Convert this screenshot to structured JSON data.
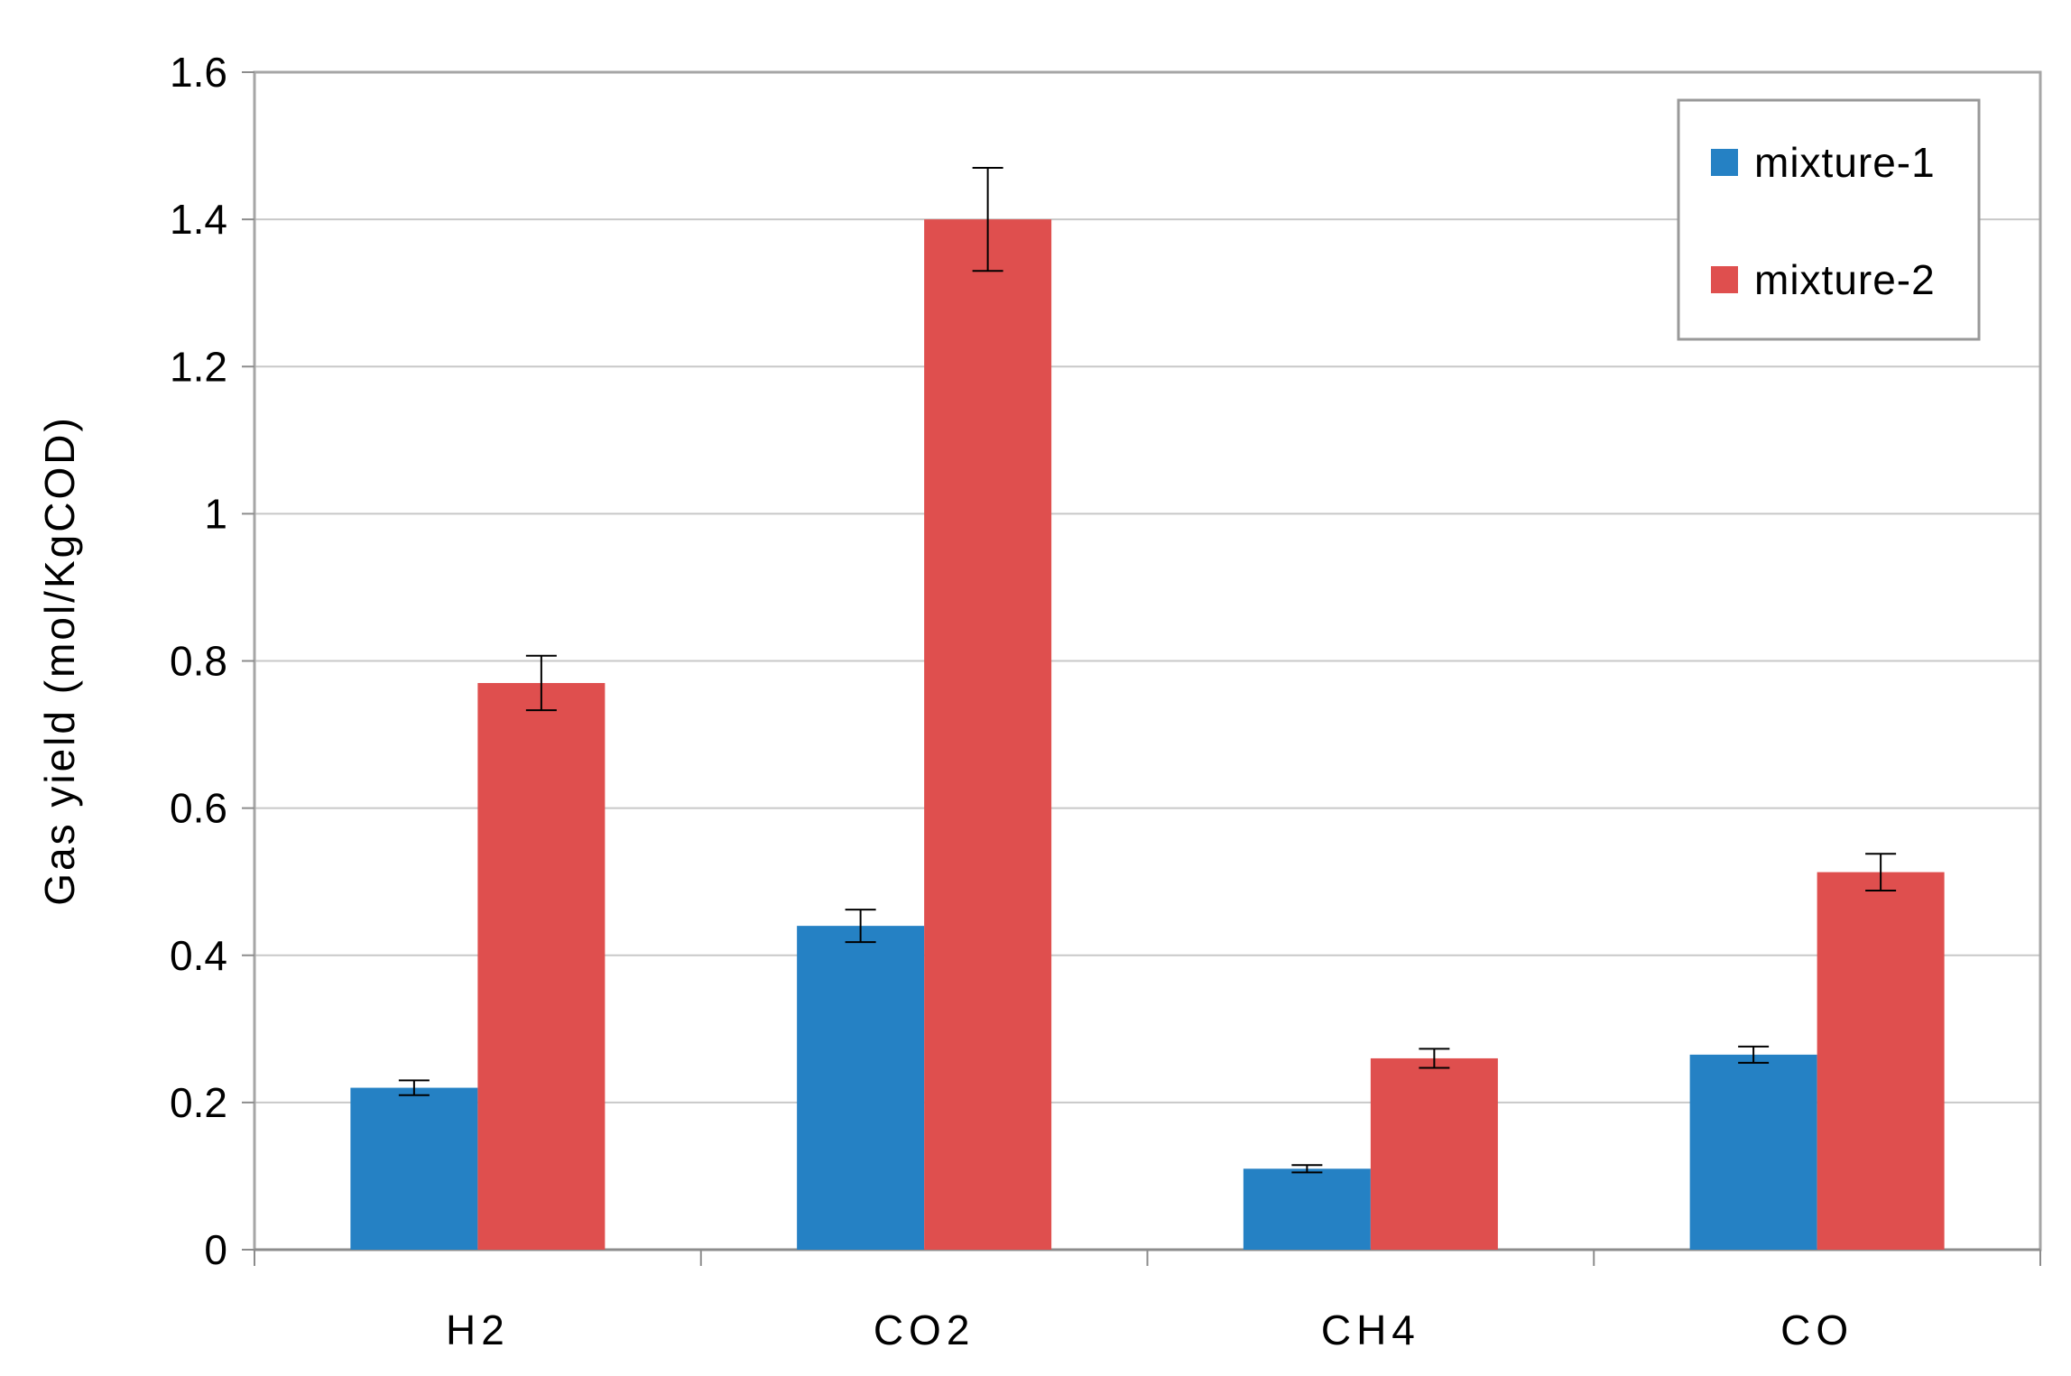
{
  "chart_data": {
    "type": "bar",
    "title": "",
    "xlabel": "",
    "ylabel": "Gas yield (mol/KgCOD)",
    "categories": [
      "H2",
      "CO2",
      "CH4",
      "CO"
    ],
    "series": [
      {
        "name": "mixture-1",
        "color": "#2581c4",
        "values": [
          0.22,
          0.44,
          0.11,
          0.265
        ],
        "errors": [
          0.01,
          0.022,
          0.005,
          0.011
        ]
      },
      {
        "name": "mixture-2",
        "color": "#df4f4e",
        "values": [
          0.77,
          1.4,
          0.26,
          0.513
        ],
        "errors": [
          0.037,
          0.07,
          0.013,
          0.025
        ]
      }
    ],
    "ylim": [
      0,
      1.6
    ],
    "yticks": [
      0,
      0.2,
      0.4,
      0.6,
      0.8,
      1,
      1.2,
      1.4,
      1.6
    ],
    "ytick_labels": [
      "0",
      "0.2",
      "0.4",
      "0.6",
      "0.8",
      "1",
      "1.2",
      "1.4",
      "1.6"
    ],
    "grid": true,
    "legend_position": "top-right",
    "error_bars": true
  }
}
